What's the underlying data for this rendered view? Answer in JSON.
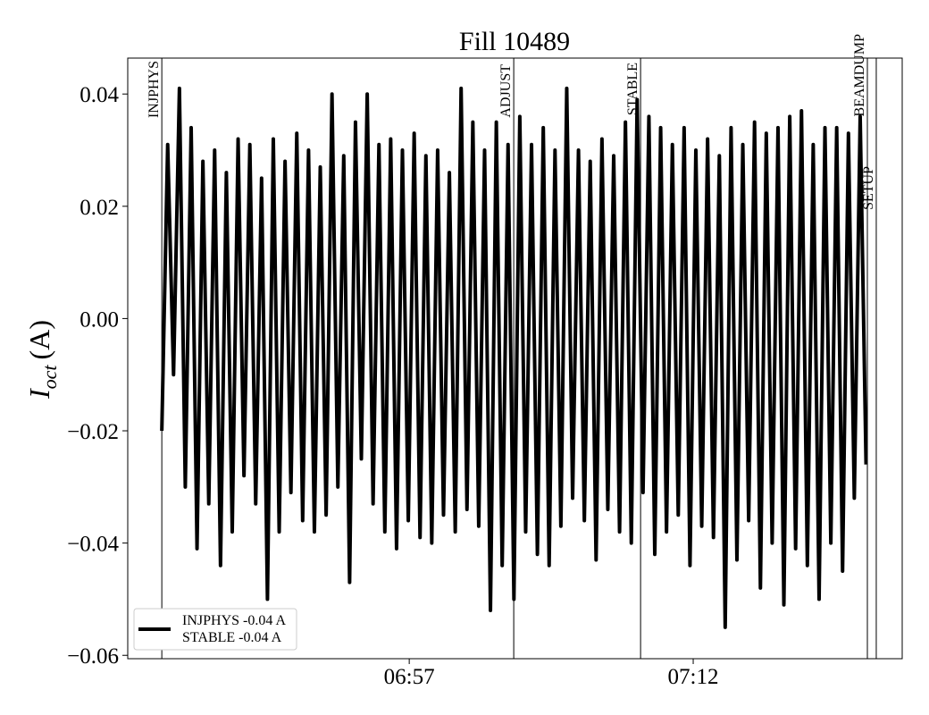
{
  "chart_data": {
    "type": "line",
    "title": "Fill 10489",
    "ylabel": {
      "symbol": "I",
      "subscript": "oct",
      "unit": "(A)"
    },
    "x": [
      403.93,
      404.24,
      404.55,
      404.86,
      405.17,
      405.48,
      405.79,
      406.1,
      406.41,
      406.72,
      407.03,
      407.34,
      407.65,
      407.96,
      408.27,
      408.58,
      408.89,
      409.2,
      409.51,
      409.82,
      410.13,
      410.44,
      410.75,
      411.06,
      411.37,
      411.68,
      411.99,
      412.3,
      412.61,
      412.92,
      413.23,
      413.54,
      413.85,
      414.16,
      414.47,
      414.78,
      415.09,
      415.4,
      415.71,
      416.02,
      416.33,
      416.64,
      416.95,
      417.26,
      417.57,
      417.88,
      418.19,
      418.5,
      418.81,
      419.12,
      419.43,
      419.74,
      420.05,
      420.36,
      420.67,
      420.98,
      421.29,
      421.6,
      421.91,
      422.22,
      422.53,
      422.84,
      423.15,
      423.46,
      423.77,
      424.08,
      424.39,
      424.7,
      425.01,
      425.32,
      425.63,
      425.94,
      426.25,
      426.56,
      426.87,
      427.18,
      427.49,
      427.8,
      428.11,
      428.42,
      428.73,
      429.04,
      429.35,
      429.66,
      429.97,
      430.28,
      430.59,
      430.9,
      431.21,
      431.52,
      431.83,
      432.14,
      432.45,
      432.76,
      433.07,
      433.38,
      433.69,
      434.0,
      434.31,
      434.62,
      434.93,
      435.24,
      435.55,
      435.86,
      436.17,
      436.48,
      436.79,
      437.1,
      437.41,
      437.72,
      438.03,
      438.34,
      438.65,
      438.96,
      439.27,
      439.58,
      439.89,
      440.2,
      440.51,
      440.82,
      441.13
    ],
    "series": [
      {
        "name": [
          "INJPHYS -0.04 A",
          "STABLE -0.04 A"
        ],
        "color": "#000000",
        "values": [
          -0.02,
          0.031,
          -0.01,
          0.041,
          -0.03,
          0.034,
          -0.041,
          0.028,
          -0.033,
          0.03,
          -0.044,
          0.026,
          -0.038,
          0.032,
          -0.028,
          0.031,
          -0.033,
          0.025,
          -0.05,
          0.032,
          -0.038,
          0.028,
          -0.031,
          0.033,
          -0.036,
          0.03,
          -0.038,
          0.027,
          -0.035,
          0.04,
          -0.03,
          0.029,
          -0.047,
          0.035,
          -0.025,
          0.04,
          -0.033,
          0.031,
          -0.038,
          0.032,
          -0.041,
          0.03,
          -0.036,
          0.033,
          -0.039,
          0.029,
          -0.04,
          0.03,
          -0.035,
          0.026,
          -0.038,
          0.041,
          -0.034,
          0.035,
          -0.037,
          0.03,
          -0.052,
          0.035,
          -0.044,
          0.031,
          -0.05,
          0.036,
          -0.038,
          0.031,
          -0.042,
          0.034,
          -0.044,
          0.03,
          -0.037,
          0.041,
          -0.032,
          0.03,
          -0.036,
          0.028,
          -0.043,
          0.032,
          -0.034,
          0.029,
          -0.038,
          0.035,
          -0.04,
          0.039,
          -0.031,
          0.036,
          -0.042,
          0.034,
          -0.038,
          0.031,
          -0.035,
          0.034,
          -0.044,
          0.03,
          -0.037,
          0.032,
          -0.039,
          0.029,
          -0.055,
          0.034,
          -0.043,
          0.031,
          -0.036,
          0.035,
          -0.048,
          0.033,
          -0.04,
          0.034,
          -0.051,
          0.036,
          -0.041,
          0.037,
          -0.044,
          0.031,
          -0.05,
          0.034,
          -0.04,
          0.034,
          -0.045,
          0.033,
          -0.032,
          0.036,
          -0.026
        ]
      }
    ],
    "xlim": [
      402.13,
      443.04
    ],
    "xticks": [
      {
        "value": 417,
        "label": "06:57"
      },
      {
        "value": 432,
        "label": "07:12"
      }
    ],
    "ylim": [
      -0.0606,
      0.0464
    ],
    "yticks": [
      {
        "value": -0.06,
        "label": "−0.06"
      },
      {
        "value": -0.04,
        "label": "−0.04"
      },
      {
        "value": -0.02,
        "label": "−0.02"
      },
      {
        "value": 0,
        "label": "0.00"
      },
      {
        "value": 0.02,
        "label": "0.02"
      },
      {
        "value": 0.04,
        "label": "0.04"
      }
    ],
    "markers": [
      {
        "label": "INJPHYS",
        "x": 403.93
      },
      {
        "label": "ADJUST",
        "x": 422.52
      },
      {
        "label": "STABLE",
        "x": 429.22
      },
      {
        "label": "BEAMDUMP",
        "x": 441.2
      },
      {
        "label": "SETUP",
        "x": 441.67
      }
    ],
    "legend": "lower left",
    "grid": false
  }
}
